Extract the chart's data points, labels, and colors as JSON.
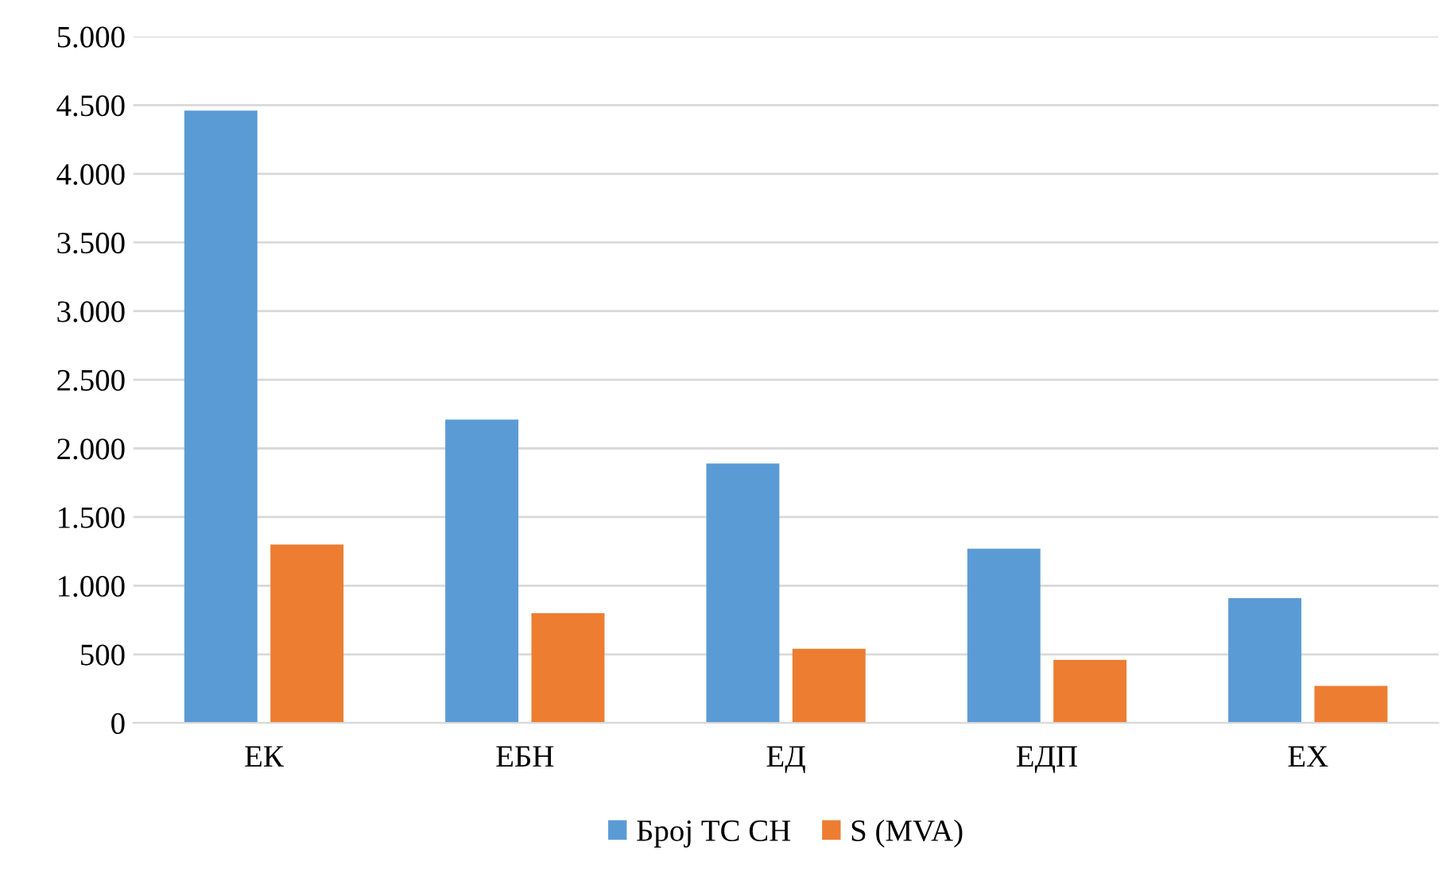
{
  "chart_data": {
    "type": "bar",
    "categories": [
      "ЕК",
      "ЕБН",
      "ЕД",
      "ЕДП",
      "ЕХ"
    ],
    "series": [
      {
        "name": "Број ТС СН",
        "color": "#5b9bd5",
        "values": [
          4460,
          2210,
          1890,
          1270,
          910
        ]
      },
      {
        "name": "S (MVA)",
        "color": "#ed7d31",
        "values": [
          1300,
          800,
          540,
          460,
          270
        ]
      }
    ],
    "ylim": [
      0,
      5000
    ],
    "yticks": [
      {
        "value": 0,
        "label": "0"
      },
      {
        "value": 500,
        "label": "500"
      },
      {
        "value": 1000,
        "label": "1.000"
      },
      {
        "value": 1500,
        "label": "1.500"
      },
      {
        "value": 2000,
        "label": "2.000"
      },
      {
        "value": 2500,
        "label": "2.500"
      },
      {
        "value": 3000,
        "label": "3.000"
      },
      {
        "value": 3500,
        "label": "3.500"
      },
      {
        "value": 4000,
        "label": "4.000"
      },
      {
        "value": 4500,
        "label": "4.500"
      },
      {
        "value": 5000,
        "label": "5.000"
      }
    ],
    "grid": "y",
    "legend": "bottom"
  }
}
